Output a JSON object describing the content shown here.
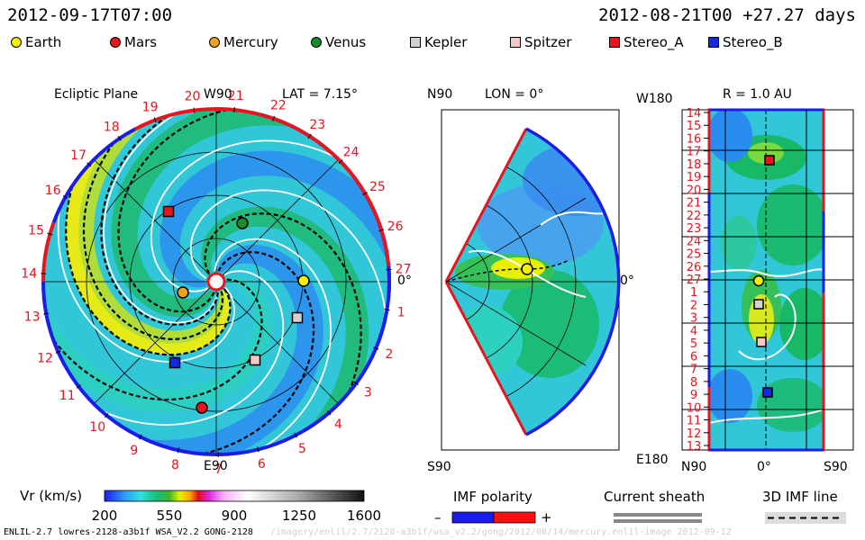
{
  "header": {
    "left_time": "2012-09-17T07:00",
    "right_time": "2012-08-21T00 +27.27 days"
  },
  "legend": [
    {
      "name": "Earth",
      "shape": "circle",
      "color": "#f5f000"
    },
    {
      "name": "Mars",
      "shape": "circle",
      "color": "#e8141e"
    },
    {
      "name": "Mercury",
      "shape": "circle",
      "color": "#f5a01e"
    },
    {
      "name": "Venus",
      "shape": "circle",
      "color": "#148c28"
    },
    {
      "name": "Kepler",
      "shape": "square",
      "color": "#d2d2d2"
    },
    {
      "name": "Spitzer",
      "shape": "square",
      "color": "#f5c8c8"
    },
    {
      "name": "Stereo_A",
      "shape": "square",
      "color": "#e8141e"
    },
    {
      "name": "Stereo_B",
      "shape": "square",
      "color": "#1428e6"
    }
  ],
  "panels": {
    "ecliptic": {
      "title": "Ecliptic Plane",
      "top_label": "W90",
      "bottom_label": "E90",
      "lat": "LAT = 7.15°",
      "right_label": "0°"
    },
    "meridional": {
      "top_label": "N90",
      "lon": "LON = 0°",
      "bottom_label": "S90",
      "right_label": "0°"
    },
    "radial": {
      "title": "R = 1.0 AU",
      "top_label": "W180",
      "bottom_label": "E180",
      "x_left": "N90",
      "x_mid": "0°",
      "x_right": "S90"
    }
  },
  "chart_data": {
    "type": "heatmap",
    "variable": "Vr (km/s)",
    "colorbar": {
      "label": "Vr (km/s)",
      "ticks": [
        "200",
        "550",
        "900",
        "1250",
        "1600"
      ],
      "range": [
        200,
        1600
      ]
    },
    "carrington_labels_ecliptic": [
      "27",
      "26",
      "25",
      "24",
      "23",
      "22",
      "21",
      "20",
      "19",
      "18",
      "17",
      "16",
      "15",
      "14",
      "13",
      "12",
      "11",
      "10",
      "9",
      "8",
      "7",
      "6",
      "5",
      "4",
      "3",
      "2",
      "1"
    ],
    "radial_y_labels": [
      "14",
      "15",
      "16",
      "17",
      "18",
      "19",
      "20",
      "21",
      "22",
      "23",
      "24",
      "25",
      "26",
      "27",
      "1",
      "2",
      "3",
      "4",
      "5",
      "6",
      "7",
      "8",
      "9",
      "10",
      "11",
      "12",
      "13"
    ]
  },
  "bottom_legends": {
    "imf_title": "IMF polarity",
    "imf_minus": "–",
    "imf_plus": "+",
    "sheath_title": "Current sheath",
    "imf3d_title": "3D IMF line"
  },
  "footer": {
    "model": "ENLIL-2.7 lowres-2128-a3b1f WSA_V2.2 GONG-2128",
    "watermark": "/imagery/enlil/2.7/2128-a3b1f/wsa_v2.2/gong/2012/08/14/mercury.enlil-image  2012-09-12"
  }
}
